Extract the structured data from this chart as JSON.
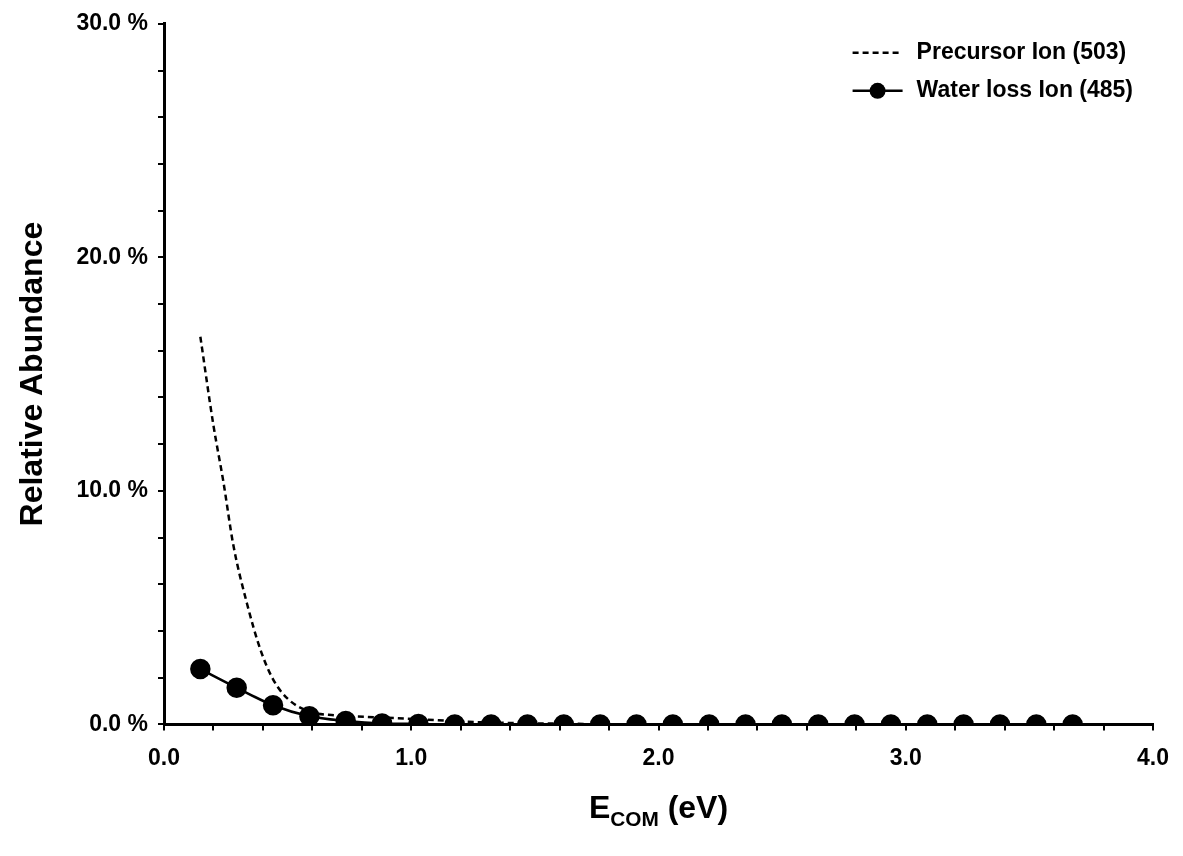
{
  "chart_data": {
    "type": "line",
    "xlabel": "E$_{COM}$ (eV)",
    "ylabel": "Relative Abundance",
    "xlim": [
      0,
      4
    ],
    "xticks": [
      {
        "value": 0,
        "label": "0.0"
      },
      {
        "value": 0.2,
        "label": null
      },
      {
        "value": 0.4,
        "label": null
      },
      {
        "value": 0.6,
        "label": null
      },
      {
        "value": 0.8,
        "label": null
      },
      {
        "value": 1,
        "label": "1.0"
      },
      {
        "value": 1.2,
        "label": null
      },
      {
        "value": 1.4,
        "label": null
      },
      {
        "value": 1.6,
        "label": null
      },
      {
        "value": 1.8,
        "label": null
      },
      {
        "value": 2,
        "label": "2.0"
      },
      {
        "value": 2.2,
        "label": null
      },
      {
        "value": 2.4,
        "label": null
      },
      {
        "value": 2.6,
        "label": null
      },
      {
        "value": 2.8,
        "label": null
      },
      {
        "value": 3,
        "label": "3.0"
      },
      {
        "value": 3.2,
        "label": null
      },
      {
        "value": 3.4,
        "label": null
      },
      {
        "value": 3.6,
        "label": null
      },
      {
        "value": 3.8,
        "label": null
      },
      {
        "value": 4,
        "label": "4.0"
      }
    ],
    "ylim": [
      0,
      30
    ],
    "yticks": [
      {
        "value": 0,
        "label": "0.0 %"
      },
      {
        "value": 2,
        "label": null
      },
      {
        "value": 4,
        "label": null
      },
      {
        "value": 6,
        "label": null
      },
      {
        "value": 8,
        "label": null
      },
      {
        "value": 10,
        "label": "10.0 %"
      },
      {
        "value": 12,
        "label": null
      },
      {
        "value": 14,
        "label": null
      },
      {
        "value": 16,
        "label": null
      },
      {
        "value": 18,
        "label": null
      },
      {
        "value": 20,
        "label": "20.0 %"
      },
      {
        "value": 22,
        "label": null
      },
      {
        "value": 24,
        "label": null
      },
      {
        "value": 26,
        "label": null
      },
      {
        "value": 28,
        "label": null
      },
      {
        "value": 30,
        "label": "30.0 %"
      }
    ],
    "grid": false,
    "legend": "top right",
    "series": [
      {
        "name": "Precursor Ion (503)",
        "color": "#000000",
        "marker": "none",
        "line_style": "dashed",
        "x": [
          0.147,
          0.2,
          0.24,
          0.28,
          0.335,
          0.39,
          0.44,
          0.5,
          0.59,
          0.69,
          0.82,
          1.02,
          1.23,
          1.47,
          1.7
        ],
        "values": [
          16.6,
          12.8,
          10.4,
          7.7,
          5.2,
          3.2,
          1.95,
          1.1,
          0.54,
          0.39,
          0.32,
          0.23,
          0.11,
          0.05,
          0.02
        ]
      },
      {
        "name": "Water loss Ion (485)",
        "color": "#000000",
        "marker": "circle",
        "line_style": "solid",
        "x": [
          0.147,
          0.294,
          0.441,
          0.588,
          0.735,
          0.882,
          1.029,
          1.176,
          1.323,
          1.47,
          1.617,
          1.764,
          1.911,
          2.058,
          2.205,
          2.352,
          2.499,
          2.646,
          2.793,
          2.94,
          3.087,
          3.234,
          3.381,
          3.528,
          3.675
        ],
        "values": [
          2.37,
          1.57,
          0.82,
          0.35,
          0.15,
          0.04,
          0.02,
          0,
          0,
          0,
          0,
          0,
          0,
          0,
          0,
          0,
          0,
          0,
          0,
          0,
          0,
          0,
          0,
          0,
          0
        ]
      }
    ]
  }
}
